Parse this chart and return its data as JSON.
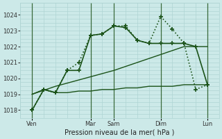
{
  "xlabel": "Pression niveau de la mer( hPa )",
  "bg_color": "#cce9e8",
  "grid_color": "#aed4d3",
  "line_color": "#1a5218",
  "vline_color": "#3a6a3a",
  "ylim": [
    1017.5,
    1024.5
  ],
  "xlim": [
    -0.5,
    16.5
  ],
  "xtick_labels": [
    "Ven",
    "Mar",
    "Sam",
    "Dim",
    "Lun"
  ],
  "xtick_positions": [
    0.5,
    5.5,
    7.5,
    11.5,
    15.5
  ],
  "ytick_values": [
    1018,
    1019,
    1020,
    1021,
    1022,
    1023,
    1024
  ],
  "vlines": [
    0.5,
    5.5,
    7.5,
    11.5,
    15.5
  ],
  "series": [
    {
      "x": [
        0.5,
        1.5,
        2.5,
        3.5,
        4.5,
        5.5,
        6.5,
        7.5,
        8.5,
        9.5,
        10.5,
        11.5,
        12.5,
        13.5,
        14.5,
        15.5
      ],
      "y": [
        1019.0,
        1019.3,
        1019.1,
        1019.1,
        1019.2,
        1019.2,
        1019.3,
        1019.3,
        1019.4,
        1019.4,
        1019.5,
        1019.5,
        1019.5,
        1019.6,
        1019.6,
        1019.6
      ],
      "style": "-",
      "marker": "None",
      "lw": 1.0,
      "zorder": 2
    },
    {
      "x": [
        0.5,
        2.5,
        5.5,
        7.5,
        9.5,
        11.5,
        13.5,
        15.5
      ],
      "y": [
        1019.0,
        1019.5,
        1020.1,
        1020.5,
        1021.0,
        1021.5,
        1022.0,
        1022.0
      ],
      "style": "-",
      "marker": "None",
      "lw": 1.0,
      "zorder": 2
    },
    {
      "x": [
        0.5,
        1.5,
        2.5,
        3.5,
        4.5,
        5.5,
        6.5,
        7.5,
        8.5,
        9.5,
        10.5,
        11.5,
        12.5,
        13.5,
        14.5,
        15.5
      ],
      "y": [
        1018.0,
        1019.3,
        1019.1,
        1020.5,
        1020.5,
        1022.7,
        1022.8,
        1023.3,
        1023.2,
        1022.4,
        1022.2,
        1022.2,
        1022.2,
        1022.2,
        1022.0,
        1019.6
      ],
      "style": "-",
      "marker": "+",
      "lw": 1.2,
      "zorder": 3
    },
    {
      "x": [
        0.5,
        1.5,
        2.5,
        3.5,
        4.5,
        5.5,
        6.5,
        7.5,
        8.5,
        9.5,
        10.5,
        11.5,
        12.5,
        13.5,
        14.5,
        15.5
      ],
      "y": [
        1018.0,
        1019.3,
        1019.1,
        1020.5,
        1021.0,
        1022.7,
        1022.8,
        1023.3,
        1023.3,
        1022.4,
        1022.2,
        1023.9,
        1023.1,
        1022.2,
        1019.3,
        1019.6
      ],
      "style": ":",
      "marker": "+",
      "lw": 1.2,
      "zorder": 3
    }
  ]
}
